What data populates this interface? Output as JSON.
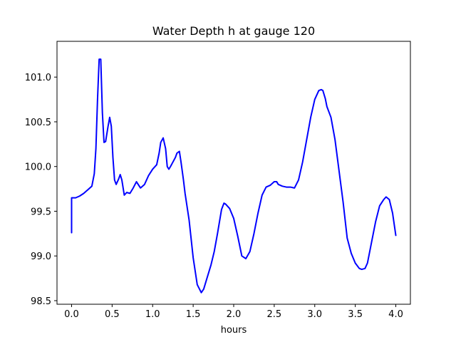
{
  "chart_data": {
    "type": "line",
    "title": "Water Depth h at gauge 120",
    "xlabel": "hours",
    "ylabel": "",
    "xlim": [
      -0.18,
      4.18
    ],
    "ylim": [
      98.46,
      101.4
    ],
    "xticks": [
      0.0,
      0.5,
      1.0,
      1.5,
      2.0,
      2.5,
      3.0,
      3.5,
      4.0
    ],
    "xtick_labels": [
      "0.0",
      "0.5",
      "1.0",
      "1.5",
      "2.0",
      "2.5",
      "3.0",
      "3.5",
      "4.0"
    ],
    "yticks": [
      98.5,
      99.0,
      99.5,
      100.0,
      100.5,
      101.0
    ],
    "ytick_labels": [
      "98.5",
      "99.0",
      "99.5",
      "100.0",
      "100.5",
      "101.0"
    ],
    "grid": false,
    "series": [
      {
        "color": "#0000ff",
        "x": [
          0.0,
          0.0,
          0.05,
          0.1,
          0.15,
          0.2,
          0.25,
          0.28,
          0.3,
          0.32,
          0.34,
          0.36,
          0.38,
          0.4,
          0.42,
          0.45,
          0.47,
          0.49,
          0.51,
          0.53,
          0.55,
          0.58,
          0.6,
          0.62,
          0.65,
          0.68,
          0.72,
          0.76,
          0.8,
          0.85,
          0.9,
          0.95,
          1.0,
          1.05,
          1.08,
          1.1,
          1.13,
          1.16,
          1.18,
          1.2,
          1.22,
          1.25,
          1.28,
          1.3,
          1.33,
          1.35,
          1.38,
          1.4,
          1.45,
          1.5,
          1.55,
          1.6,
          1.63,
          1.67,
          1.72,
          1.76,
          1.8,
          1.85,
          1.88,
          1.9,
          1.95,
          2.0,
          2.05,
          2.1,
          2.15,
          2.2,
          2.25,
          2.3,
          2.35,
          2.4,
          2.45,
          2.5,
          2.53,
          2.55,
          2.6,
          2.65,
          2.7,
          2.75,
          2.8,
          2.85,
          2.9,
          2.95,
          3.0,
          3.05,
          3.08,
          3.1,
          3.13,
          3.15,
          3.2,
          3.25,
          3.3,
          3.35,
          3.4,
          3.45,
          3.5,
          3.55,
          3.58,
          3.62,
          3.65,
          3.7,
          3.75,
          3.8,
          3.85,
          3.88,
          3.92,
          3.96,
          4.0
        ],
        "y": [
          99.26,
          99.65,
          99.65,
          99.67,
          99.7,
          99.74,
          99.78,
          99.92,
          100.2,
          100.75,
          101.2,
          101.2,
          100.6,
          100.27,
          100.28,
          100.45,
          100.55,
          100.45,
          100.1,
          99.85,
          99.8,
          99.86,
          99.91,
          99.85,
          99.68,
          99.71,
          99.7,
          99.76,
          99.83,
          99.76,
          99.8,
          99.9,
          99.97,
          100.02,
          100.15,
          100.27,
          100.32,
          100.2,
          100.0,
          99.97,
          100.0,
          100.05,
          100.1,
          100.15,
          100.17,
          100.05,
          99.85,
          99.7,
          99.4,
          98.98,
          98.68,
          98.59,
          98.63,
          98.75,
          98.9,
          99.05,
          99.25,
          99.52,
          99.59,
          99.58,
          99.53,
          99.42,
          99.22,
          99.0,
          98.97,
          99.05,
          99.25,
          99.48,
          99.68,
          99.77,
          99.79,
          99.83,
          99.83,
          99.8,
          99.78,
          99.77,
          99.77,
          99.76,
          99.85,
          100.05,
          100.3,
          100.55,
          100.75,
          100.85,
          100.86,
          100.85,
          100.76,
          100.67,
          100.55,
          100.3,
          99.95,
          99.6,
          99.2,
          99.03,
          98.92,
          98.86,
          98.85,
          98.86,
          98.92,
          99.15,
          99.38,
          99.56,
          99.63,
          99.66,
          99.63,
          99.48,
          99.23
        ]
      }
    ]
  }
}
